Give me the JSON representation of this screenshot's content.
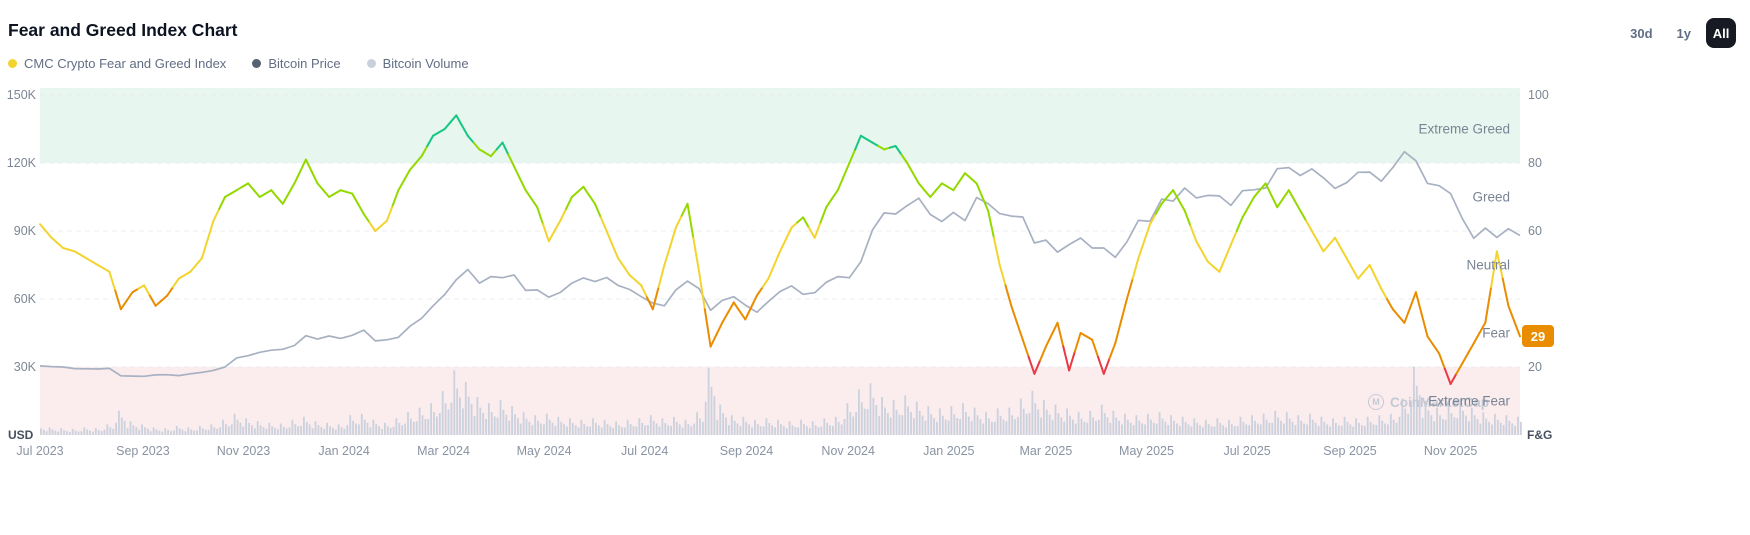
{
  "header": {
    "title": "Fear and Greed Index Chart",
    "range_buttons": [
      {
        "label": "30d",
        "active": false
      },
      {
        "label": "1y",
        "active": false
      },
      {
        "label": "All",
        "active": true
      }
    ]
  },
  "legend": [
    {
      "label": "CMC Crypto Fear and Greed Index",
      "color": "#F3D42F"
    },
    {
      "label": "Bitcoin Price",
      "color": "#58626F"
    },
    {
      "label": "Bitcoin Volume",
      "color": "#C9D0DC"
    }
  ],
  "zones": [
    {
      "label": "Extreme Greed",
      "range": [
        80,
        100
      ],
      "band_color": "#E7F6EE"
    },
    {
      "label": "Greed",
      "range": [
        60,
        80
      ]
    },
    {
      "label": "Neutral",
      "range": [
        40,
        60
      ]
    },
    {
      "label": "Fear",
      "range": [
        20,
        40
      ]
    },
    {
      "label": "Extreme Fear",
      "range": [
        0,
        20
      ],
      "band_color": "#FBECEE"
    }
  ],
  "current_badge": {
    "value": "29",
    "color": "#EA8C00"
  },
  "watermark": "CoinMarketCap",
  "watermark_logo": "M",
  "chart_data": {
    "type": "line",
    "x_interval": "weekly",
    "x_start": "Jul 2023",
    "x_end": "Dec 2025",
    "x_tick_labels": [
      "Jul 2023",
      "Sep 2023",
      "Nov 2023",
      "Jan 2024",
      "Mar 2024",
      "May 2024",
      "Jul 2024",
      "Sep 2024",
      "Nov 2024",
      "Jan 2025",
      "Mar 2025",
      "May 2025",
      "Jul 2025",
      "Sep 2025",
      "Nov 2025"
    ],
    "x_tick_week_index": [
      0,
      8.9,
      17.6,
      26.3,
      34.9,
      43.6,
      52.3,
      61.1,
      69.9,
      78.6,
      87,
      95.7,
      104.4,
      113.3,
      122
    ],
    "left_axis": {
      "title": "USD",
      "unit": "thousand USD",
      "ticks": [
        {
          "value": 150,
          "label": "150K"
        },
        {
          "value": 120,
          "label": "120K"
        },
        {
          "value": 90,
          "label": "90K"
        },
        {
          "value": 60,
          "label": "60K"
        },
        {
          "value": 30,
          "label": "30K"
        }
      ]
    },
    "right_axis": {
      "title": "F&G",
      "range": [
        0,
        100
      ],
      "ticks": [
        {
          "value": 100,
          "label": "100"
        },
        {
          "value": 80,
          "label": "80"
        },
        {
          "value": 60,
          "label": "60"
        },
        {
          "value": 20,
          "label": "20"
        }
      ]
    },
    "fg_color_scale": [
      {
        "max": 20,
        "label": "extreme-fear",
        "color": "#EA3943"
      },
      {
        "max": 42,
        "label": "fear",
        "color": "#EA8C00"
      },
      {
        "max": 63,
        "label": "neutral",
        "color": "#F3D42F"
      },
      {
        "max": 84,
        "label": "greed",
        "color": "#93D900"
      },
      {
        "max": 100,
        "label": "extreme-greed",
        "color": "#16C784"
      }
    ],
    "current_value": 29,
    "series": [
      {
        "name": "CMC Crypto Fear and Greed Index",
        "type": "line",
        "axis": "right",
        "multicolor": true,
        "values": [
          62,
          58,
          55,
          54,
          52,
          50,
          48,
          37,
          42,
          44,
          38,
          41,
          46,
          48,
          52,
          63,
          70,
          72,
          74,
          70,
          72,
          68,
          74,
          81,
          74,
          70,
          72,
          71,
          65,
          60,
          63,
          72,
          78,
          82,
          88,
          90,
          94,
          88,
          84,
          82,
          86,
          79,
          72,
          67,
          57,
          63,
          70,
          73,
          68,
          60,
          52,
          47,
          44,
          37,
          50,
          61,
          68,
          48,
          26,
          33,
          39,
          34,
          41,
          46,
          54,
          61,
          64,
          58,
          67,
          72,
          80,
          88,
          86,
          84,
          85,
          80,
          74,
          70,
          74,
          72,
          77,
          74,
          66,
          50,
          38,
          28,
          18,
          26,
          33,
          19,
          30,
          28,
          18,
          27,
          40,
          52,
          62,
          68,
          72,
          66,
          57,
          51,
          48,
          56,
          64,
          70,
          74,
          67,
          72,
          66,
          60,
          54,
          58,
          52,
          46,
          50,
          43,
          37,
          33,
          42,
          29,
          24,
          15,
          21,
          27,
          33,
          54,
          38,
          29
        ]
      },
      {
        "name": "Bitcoin Price",
        "type": "line",
        "axis": "left",
        "unit": "K USD",
        "color": "#A8B1C2",
        "values": [
          30.5,
          30.2,
          30.0,
          29.3,
          29.2,
          29.1,
          29.4,
          26.1,
          26.0,
          25.9,
          26.5,
          26.6,
          26.2,
          27.0,
          27.6,
          28.5,
          30.0,
          34.0,
          35.0,
          36.5,
          37.4,
          37.8,
          39.5,
          43.8,
          42.3,
          43.7,
          42.6,
          44.0,
          46.3,
          41.5,
          42.0,
          43.1,
          48.0,
          51.5,
          57.0,
          62.0,
          68.5,
          73.0,
          67.0,
          69.9,
          69.4,
          70.6,
          63.8,
          64.0,
          60.8,
          62.9,
          67.0,
          69.3,
          67.7,
          69.5,
          66.0,
          64.2,
          61.0,
          58.2,
          57.0,
          64.0,
          67.9,
          64.6,
          55.0,
          59.4,
          61.0,
          57.3,
          54.2,
          58.9,
          63.3,
          65.8,
          62.1,
          62.8,
          67.4,
          69.9,
          69.4,
          76.5,
          90.5,
          98.0,
          97.5,
          101.2,
          104.5,
          97.3,
          94.2,
          98.2,
          94.6,
          104.8,
          102.1,
          97.7,
          96.6,
          96.2,
          84.7,
          86.0,
          80.7,
          84.0,
          86.9,
          82.5,
          82.5,
          78.4,
          85.2,
          94.7,
          94.3,
          104.1,
          103.2,
          109.0,
          104.6,
          105.7,
          105.5,
          101.3,
          107.8,
          108.2,
          109.0,
          117.5,
          118.0,
          114.5,
          117.4,
          113.5,
          108.8,
          111.3,
          115.9,
          116.0,
          112.0,
          118.0,
          125.0,
          121.0,
          111.0,
          110.0,
          106.5,
          95.6,
          86.8,
          91.3,
          87.2,
          91.0,
          88.0
        ]
      },
      {
        "name": "Bitcoin Volume",
        "type": "bar",
        "axis": "relative",
        "color": "#CBD1DD",
        "values": [
          12,
          10,
          9,
          8,
          10,
          9,
          14,
          32,
          18,
          14,
          10,
          9,
          12,
          10,
          12,
          14,
          20,
          28,
          22,
          18,
          16,
          15,
          20,
          24,
          18,
          16,
          14,
          26,
          28,
          20,
          16,
          22,
          30,
          36,
          42,
          58,
          85,
          70,
          50,
          42,
          46,
          38,
          30,
          26,
          28,
          24,
          22,
          20,
          22,
          20,
          18,
          20,
          22,
          26,
          22,
          24,
          20,
          30,
          88,
          40,
          26,
          24,
          20,
          22,
          20,
          18,
          20,
          18,
          22,
          24,
          42,
          60,
          68,
          50,
          46,
          52,
          44,
          38,
          35,
          38,
          42,
          36,
          30,
          35,
          36,
          48,
          58,
          46,
          40,
          35,
          30,
          32,
          40,
          32,
          28,
          26,
          28,
          30,
          26,
          24,
          22,
          20,
          22,
          20,
          24,
          26,
          28,
          32,
          30,
          26,
          28,
          24,
          22,
          24,
          22,
          24,
          26,
          28,
          48,
          90,
          45,
          36,
          40,
          44,
          36,
          30,
          28,
          26,
          24
        ]
      }
    ]
  }
}
